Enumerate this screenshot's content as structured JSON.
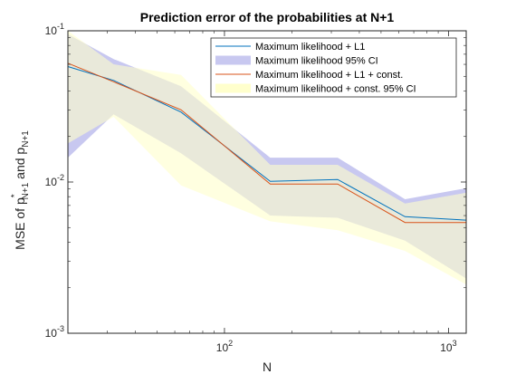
{
  "chart_data": {
    "type": "line",
    "title": "Prediction error of the probabilities at N+1",
    "xlabel": "N",
    "ylabel": {
      "prefix": "MSE of p",
      "sub1": "N+1",
      "sup1": "*",
      "mid": " and p",
      "sub2": "N+1"
    },
    "xscale": "log",
    "yscale": "log",
    "xlim": [
      20,
      1200
    ],
    "ylim": [
      0.001,
      0.1
    ],
    "xticks": [
      {
        "value": 100,
        "base": "10",
        "exp": "2"
      },
      {
        "value": 1000,
        "base": "10",
        "exp": "3"
      }
    ],
    "yticks": [
      {
        "value": 0.001,
        "base": "10",
        "exp": "-3"
      },
      {
        "value": 0.01,
        "base": "10",
        "exp": "-2"
      },
      {
        "value": 0.1,
        "base": "10",
        "exp": "-1"
      }
    ],
    "legend_position": "top-right",
    "x": [
      20,
      32,
      64,
      160,
      320,
      640,
      1200
    ],
    "series": [
      {
        "name": "Maximum likelihood + L1",
        "kind": "line",
        "color": "#0072BD",
        "values": [
          0.058,
          0.047,
          0.029,
          0.0101,
          0.0104,
          0.0059,
          0.0056
        ]
      },
      {
        "name": "Maximum likelihood 95% CI",
        "kind": "band",
        "color": "#C8C8F0",
        "lower": [
          0.0145,
          0.028,
          0.0155,
          0.006,
          0.0058,
          0.0041,
          0.0023
        ],
        "upper": [
          0.095,
          0.065,
          0.043,
          0.0145,
          0.0145,
          0.0077,
          0.0091
        ]
      },
      {
        "name": "Maximum likelihood + L1 + const.",
        "kind": "line",
        "color": "#D95319",
        "values": [
          0.061,
          0.046,
          0.03,
          0.0097,
          0.0097,
          0.0054,
          0.0054
        ]
      },
      {
        "name": "Maximum likelihood + const. 95% CI",
        "kind": "band",
        "color": "#FFFFCC",
        "lower": [
          0.018,
          0.027,
          0.0095,
          0.0055,
          0.0048,
          0.0035,
          0.0021
        ],
        "upper": [
          0.1,
          0.06,
          0.051,
          0.013,
          0.013,
          0.0072,
          0.0085
        ]
      }
    ]
  }
}
